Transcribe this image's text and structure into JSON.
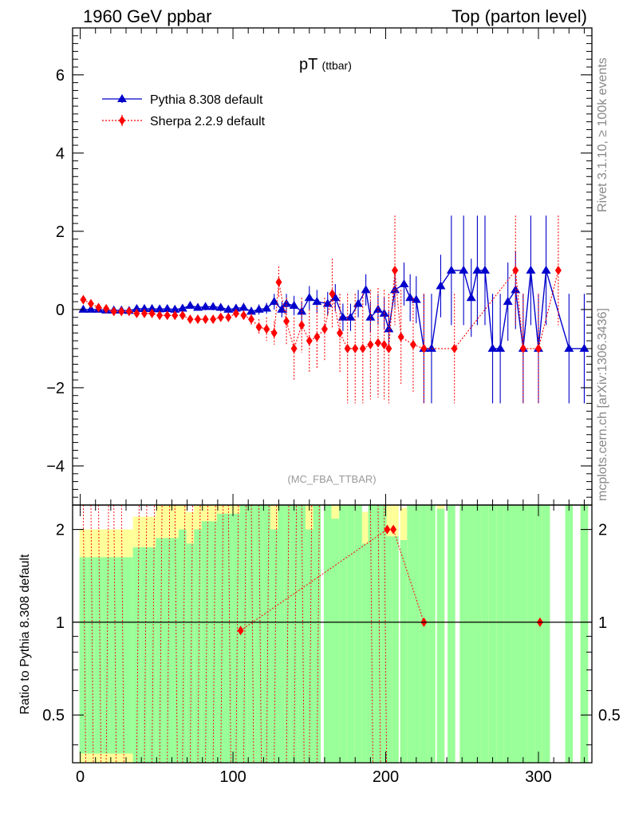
{
  "header": {
    "left": "1960 GeV ppbar",
    "right": "Top (parton level)"
  },
  "side_labels": {
    "rivet": "Rivet 3.1.10, ≥ 100k events",
    "mcplots": "mcplots.cern.ch [arXiv:1306.3436]"
  },
  "colors": {
    "pythia": "#0000cc",
    "sherpa": "#ff0000",
    "band_inner": "#99ff99",
    "band_outer": "#ffff99"
  },
  "chart_data": [
    {
      "type": "line",
      "title": "pT",
      "title_sub": "(ttbar)",
      "analysis": "(MC_FBA_TTBAR)",
      "xlim": [
        -5,
        335
      ],
      "ylim": [
        -5,
        7.2
      ],
      "xticks": [
        0,
        100,
        200,
        300
      ],
      "yticks": [
        -4,
        -2,
        0,
        2,
        4,
        6
      ],
      "legend_placement": "top-left",
      "series": [
        {
          "name": "Pythia 8.308 default",
          "marker": "triangle",
          "line": "solid",
          "points": [
            [
              2,
              0.0,
              0.05
            ],
            [
              7,
              0.0,
              0.05
            ],
            [
              12,
              0.0,
              0.05
            ],
            [
              17,
              -0.02,
              0.05
            ],
            [
              22,
              -0.02,
              0.05
            ],
            [
              27,
              -0.02,
              0.05
            ],
            [
              32,
              -0.03,
              0.05
            ],
            [
              37,
              0.02,
              0.06
            ],
            [
              42,
              0.02,
              0.06
            ],
            [
              47,
              0.02,
              0.06
            ],
            [
              52,
              0.01,
              0.07
            ],
            [
              57,
              0.02,
              0.07
            ],
            [
              62,
              0.0,
              0.07
            ],
            [
              67,
              0.03,
              0.08
            ],
            [
              72,
              0.1,
              0.08
            ],
            [
              77,
              0.05,
              0.08
            ],
            [
              82,
              0.07,
              0.09
            ],
            [
              87,
              0.07,
              0.09
            ],
            [
              92,
              0.05,
              0.1
            ],
            [
              97,
              0.0,
              0.1
            ],
            [
              102,
              0.03,
              0.1
            ],
            [
              107,
              0.05,
              0.12
            ],
            [
              112,
              -0.05,
              0.12
            ],
            [
              117,
              0.0,
              0.13
            ],
            [
              122,
              0.03,
              0.14
            ],
            [
              127,
              0.2,
              0.2
            ],
            [
              132,
              0.0,
              0.2
            ],
            [
              135,
              0.15,
              0.25
            ],
            [
              140,
              0.1,
              0.25
            ],
            [
              145,
              -0.05,
              0.25
            ],
            [
              150,
              0.3,
              0.3
            ],
            [
              155,
              0.2,
              0.3
            ],
            [
              162,
              0.15,
              0.3
            ],
            [
              167,
              0.3,
              0.35
            ],
            [
              172,
              -0.2,
              0.35
            ],
            [
              177,
              -0.2,
              0.35
            ],
            [
              182,
              0.15,
              0.35
            ],
            [
              187,
              0.5,
              0.4
            ],
            [
              190,
              -0.2,
              0.4
            ],
            [
              195,
              0.0,
              0.4
            ],
            [
              199,
              -0.1,
              0.4
            ],
            [
              202,
              -0.5,
              0.45
            ],
            [
              206,
              0.5,
              0.45
            ],
            [
              212,
              0.65,
              0.55
            ],
            [
              216,
              0.3,
              0.6
            ],
            [
              220,
              0.25,
              0.6
            ],
            [
              225,
              -1.0,
              1.4
            ],
            [
              230,
              -1.0,
              1.4
            ],
            [
              236,
              0.6,
              0.8
            ],
            [
              243,
              1.0,
              1.4
            ],
            [
              251,
              1.0,
              1.4
            ],
            [
              256,
              0.3,
              1.0
            ],
            [
              260,
              1.0,
              1.4
            ],
            [
              265,
              1.0,
              1.4
            ],
            [
              270,
              -1.0,
              1.4
            ],
            [
              275,
              -1.0,
              1.4
            ],
            [
              280,
              0.2,
              1.0
            ],
            [
              285,
              0.5,
              1.0
            ],
            [
              290,
              -1.0,
              1.4
            ],
            [
              295,
              1.0,
              1.4
            ],
            [
              300,
              -1.0,
              1.4
            ],
            [
              305,
              1.0,
              1.4
            ],
            [
              320,
              -1.0,
              1.4
            ],
            [
              330,
              -1.0,
              1.4
            ]
          ]
        },
        {
          "name": "Sherpa 2.2.9 default",
          "marker": "diamond",
          "line": "dotted",
          "points": [
            [
              2,
              0.25,
              0.05
            ],
            [
              7,
              0.15,
              0.05
            ],
            [
              12,
              0.05,
              0.05
            ],
            [
              17,
              0.02,
              0.05
            ],
            [
              22,
              -0.05,
              0.05
            ],
            [
              27,
              -0.05,
              0.05
            ],
            [
              32,
              -0.05,
              0.05
            ],
            [
              37,
              -0.1,
              0.06
            ],
            [
              42,
              -0.1,
              0.06
            ],
            [
              47,
              -0.1,
              0.06
            ],
            [
              52,
              -0.15,
              0.07
            ],
            [
              57,
              -0.15,
              0.07
            ],
            [
              62,
              -0.15,
              0.07
            ],
            [
              67,
              -0.15,
              0.08
            ],
            [
              72,
              -0.25,
              0.08
            ],
            [
              77,
              -0.25,
              0.08
            ],
            [
              82,
              -0.25,
              0.09
            ],
            [
              87,
              -0.25,
              0.09
            ],
            [
              92,
              -0.2,
              0.1
            ],
            [
              97,
              -0.2,
              0.1
            ],
            [
              102,
              -0.1,
              0.1
            ],
            [
              107,
              -0.15,
              0.12
            ],
            [
              112,
              -0.25,
              0.15
            ],
            [
              117,
              -0.45,
              0.2
            ],
            [
              122,
              -0.5,
              0.3
            ],
            [
              127,
              -0.6,
              0.3
            ],
            [
              130,
              0.7,
              0.4
            ],
            [
              135,
              -0.3,
              0.6
            ],
            [
              140,
              -1.0,
              0.8
            ],
            [
              145,
              -0.4,
              0.7
            ],
            [
              150,
              -0.8,
              0.8
            ],
            [
              155,
              -0.7,
              0.8
            ],
            [
              160,
              -0.5,
              0.8
            ],
            [
              165,
              0.4,
              0.9
            ],
            [
              170,
              -0.6,
              1.0
            ],
            [
              175,
              -1.0,
              1.4
            ],
            [
              180,
              -1.0,
              1.4
            ],
            [
              185,
              -1.0,
              1.4
            ],
            [
              190,
              -0.9,
              1.4
            ],
            [
              195,
              -0.85,
              1.4
            ],
            [
              199,
              -0.9,
              1.4
            ],
            [
              202,
              -1.0,
              1.4
            ],
            [
              206,
              1.0,
              1.4
            ],
            [
              210,
              -0.7,
              1.2
            ],
            [
              218,
              -0.9,
              1.2
            ],
            [
              225,
              -1.0,
              1.4
            ],
            [
              245,
              -1.0,
              1.4
            ],
            [
              285,
              1.0,
              1.4
            ],
            [
              290,
              -1.0,
              1.4
            ],
            [
              300,
              -1.0,
              1.4
            ],
            [
              313,
              1.0,
              1.4
            ]
          ]
        }
      ]
    },
    {
      "type": "line",
      "ylabel": "Ratio to Pythia 8.308 default",
      "ylim": [
        0.35,
        2.4
      ],
      "ylog": true,
      "yticks": [
        0.5,
        1,
        2
      ],
      "reference_value": 1,
      "ratio_points": [
        [
          105,
          0.94
        ],
        [
          201,
          2.0
        ],
        [
          205,
          2.0
        ],
        [
          225,
          1.0
        ],
        [
          301,
          1.0
        ]
      ]
    }
  ]
}
